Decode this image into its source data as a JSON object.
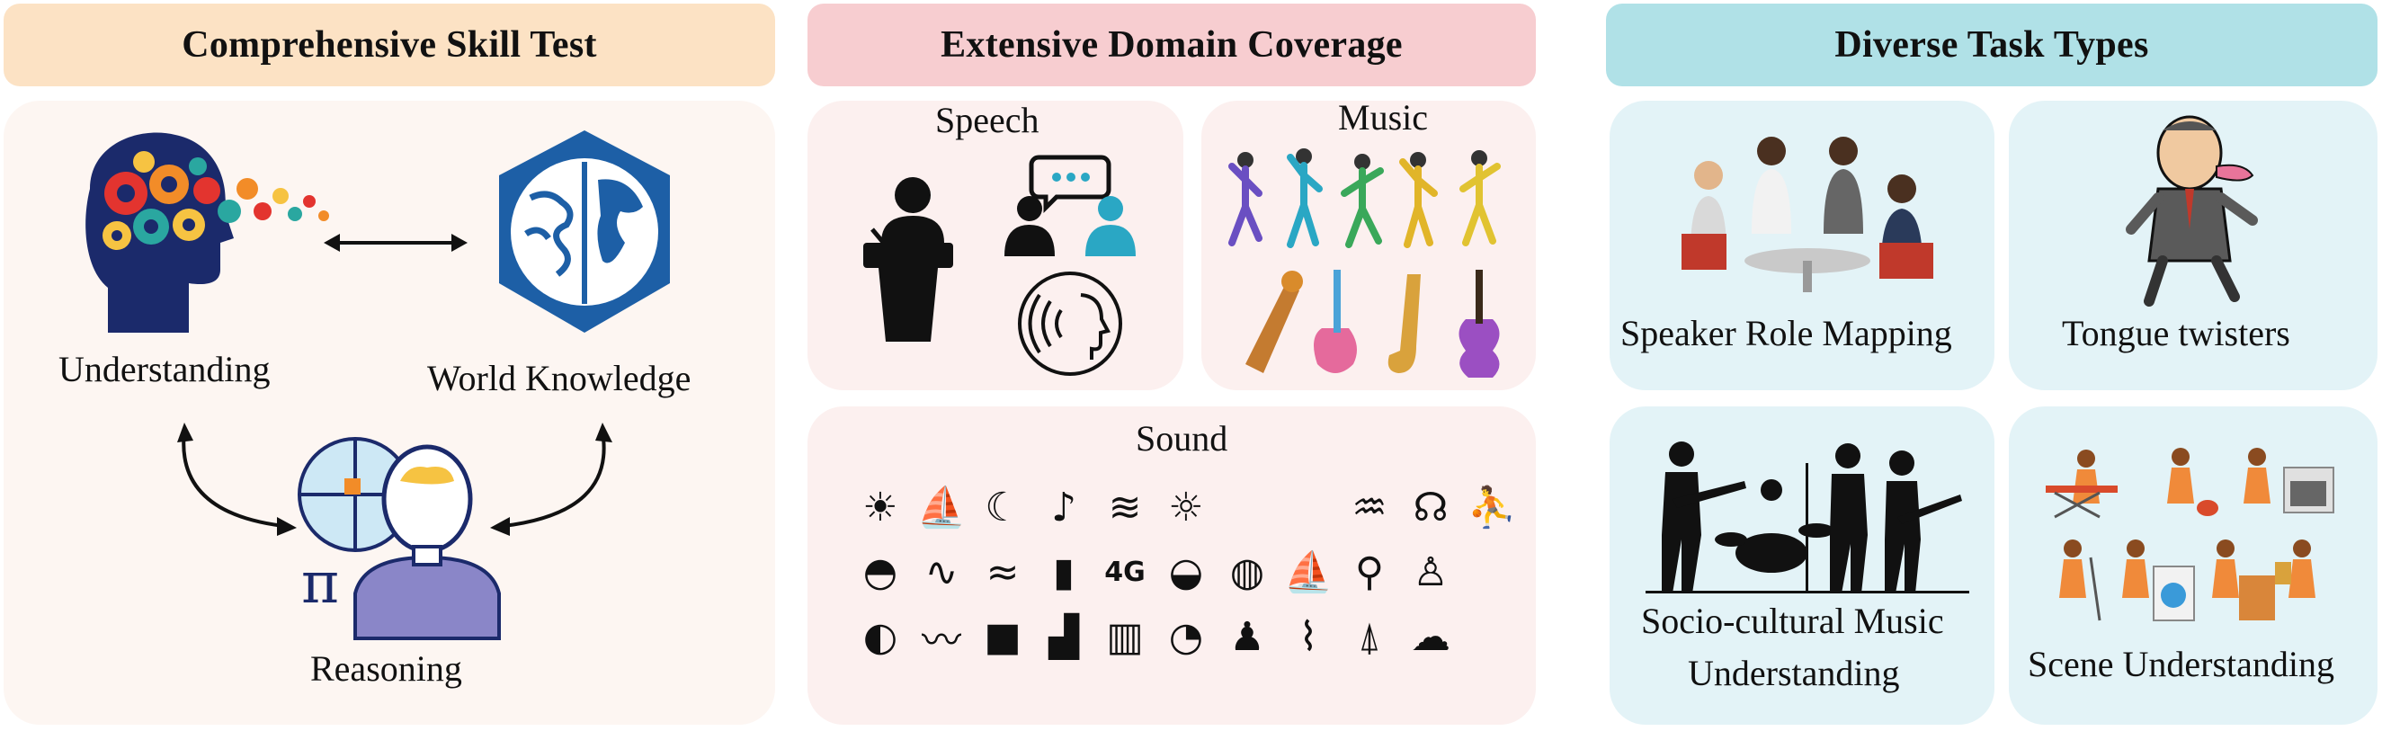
{
  "headers": {
    "skill": "Comprehensive Skill Test",
    "domain": "Extensive Domain Coverage",
    "task": "Diverse Task Types"
  },
  "skill_panel": {
    "understanding": "Understanding",
    "world_knowledge": "World Knowledge",
    "reasoning": "Reasoning"
  },
  "domain_panel": {
    "speech": "Speech",
    "music": "Music",
    "sound": "Sound",
    "sound_icons": [
      "weather-sun-icon",
      "sailboat-icon",
      "moon-wave-icon",
      "music-note-icon",
      "waves-icon",
      "sun-waves-icon",
      "blank",
      "pool-icon",
      "headphones-icon",
      "swimmer-icon",
      "surf-icon",
      "audio-wave-icon",
      "birds-icon",
      "phone-icon",
      "4g-icon",
      "big-wave-icon",
      "wave-swirl-icon",
      "sail-icon",
      "antenna-icon",
      "person-icon",
      "wave-circle-icon",
      "sea-icon",
      "water-box-icon",
      "building-wave-icon",
      "equalizer-icon",
      "wave-up-icon",
      "person-sit-icon",
      "stairs-wave-icon",
      "radio-tower-icon",
      "cloud-sun-icon"
    ]
  },
  "task_panel": {
    "speaker_role": "Speaker Role Mapping",
    "tongue": "Tongue twisters",
    "socio_line1": "Socio-cultural Music",
    "socio_line2": "Understanding",
    "scene": "Scene Understanding"
  },
  "colors": {
    "skill_header": "#fce2c4",
    "domain_header": "#f7cdd0",
    "task_header": "#b0e1e7",
    "skill_panel": "#fdf6f2",
    "domain_card": "#fcf0ef",
    "task_card": "#e3f3f7",
    "brain_blue": "#1d5fa6",
    "head_navy": "#1b2a6b"
  }
}
